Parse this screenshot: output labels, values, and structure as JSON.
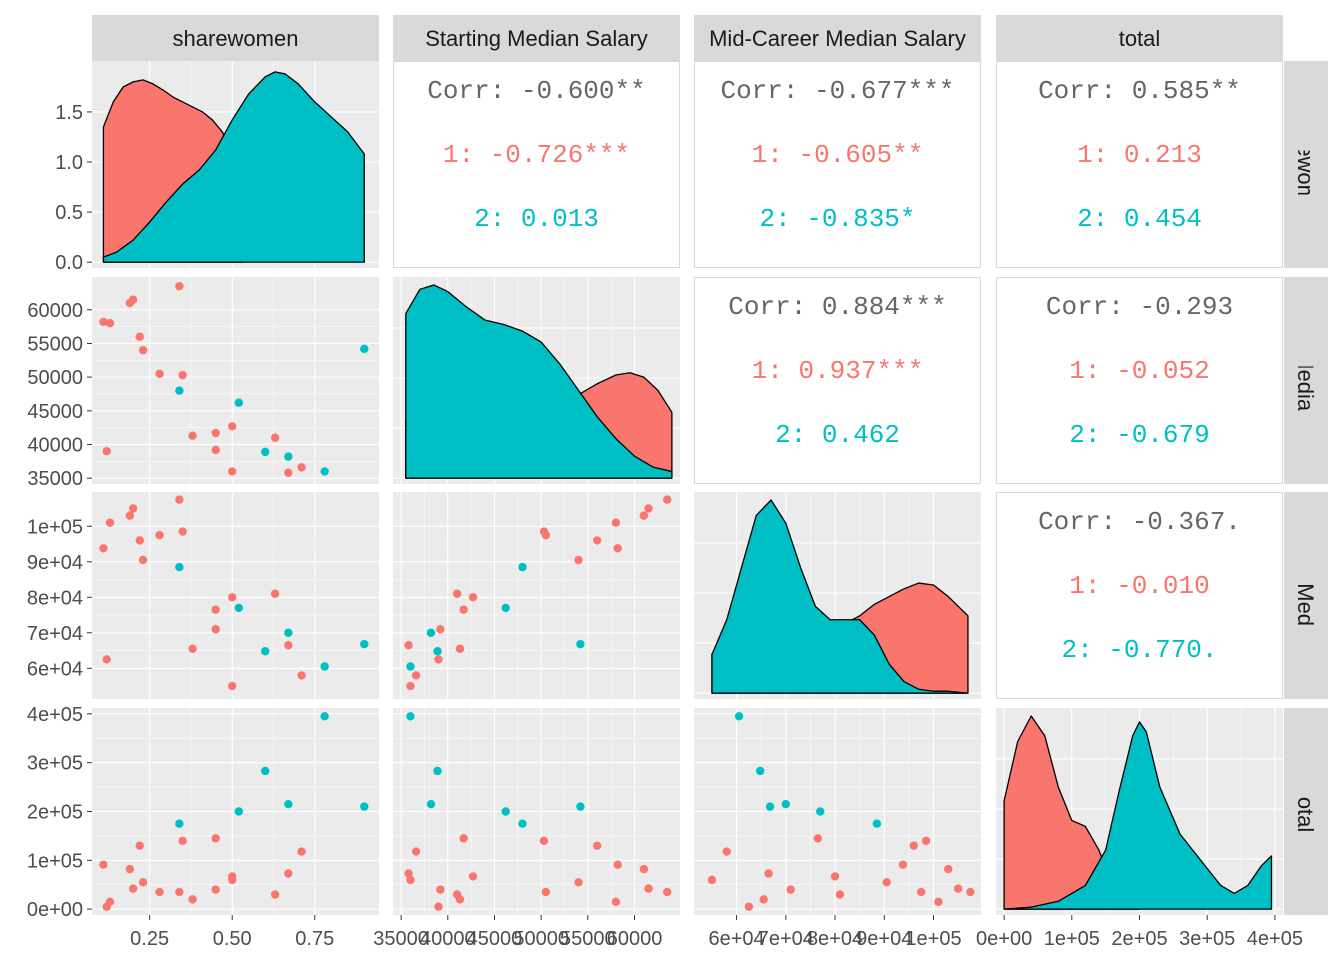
{
  "chart_data": {
    "type": "scatter-matrix",
    "variables": [
      "sharewomen",
      "Starting Median Salary",
      "Mid-Career Median Salary",
      "total"
    ],
    "panel_titles": [
      "sharewomen",
      "Starting Median Salary",
      "Mid-Career Median Salary",
      "total"
    ],
    "strip_labels_right": [
      "sharewomen",
      "Starting Median Salary",
      "Mid-Career Median Salary",
      "total"
    ],
    "groups": [
      {
        "id": "1",
        "color": "#F8766D"
      },
      {
        "id": "2",
        "color": "#00BFC4"
      }
    ],
    "axis_ticks": {
      "sharewomen": {
        "range": [
          0.1,
          0.92
        ],
        "ticks": [
          0.25,
          0.5,
          0.75
        ],
        "labels": [
          "0.25",
          "0.50",
          "0.75"
        ]
      },
      "Starting Median Salary": {
        "range": [
          35000,
          64000
        ],
        "ticks": [
          35000,
          40000,
          45000,
          50000,
          55000,
          60000
        ],
        "labels": [
          "35000",
          "40000",
          "45000",
          "50000",
          "55000",
          "60000"
        ]
      },
      "Mid-Career Median Salary": {
        "range": [
          53000,
          108000
        ],
        "ticks": [
          60000,
          70000,
          80000,
          90000,
          100000
        ],
        "labels": [
          "6e+04",
          "7e+04",
          "8e+04",
          "9e+04",
          "1e+05"
        ]
      },
      "total": {
        "range": [
          0,
          400000
        ],
        "ticks": [
          0,
          100000,
          200000,
          300000,
          400000
        ],
        "labels": [
          "0e+00",
          "1e+05",
          "2e+05",
          "3e+05",
          "4e+05"
        ]
      }
    },
    "density_ticks": {
      "range": [
        0,
        1.95
      ],
      "ticks": [
        0,
        0.5,
        1.0,
        1.5
      ],
      "labels": [
        "0.0",
        "0.5",
        "1.0",
        "1.5"
      ]
    },
    "points": [
      {
        "group": "1",
        "sharewomen": 0.11,
        "Starting Median Salary": 58200,
        "Mid-Career Median Salary": 93800,
        "total": 91000
      },
      {
        "group": "1",
        "sharewomen": 0.13,
        "Starting Median Salary": 58000,
        "Mid-Career Median Salary": 101000,
        "total": 15000
      },
      {
        "group": "1",
        "sharewomen": 0.12,
        "Starting Median Salary": 39000,
        "Mid-Career Median Salary": 62500,
        "total": 5000
      },
      {
        "group": "1",
        "sharewomen": 0.19,
        "Starting Median Salary": 61000,
        "Mid-Career Median Salary": 103000,
        "total": 82000
      },
      {
        "group": "1",
        "sharewomen": 0.2,
        "Starting Median Salary": 61500,
        "Mid-Career Median Salary": 105000,
        "total": 42000
      },
      {
        "group": "1",
        "sharewomen": 0.22,
        "Starting Median Salary": 56000,
        "Mid-Career Median Salary": 96000,
        "total": 130000
      },
      {
        "group": "1",
        "sharewomen": 0.23,
        "Starting Median Salary": 54000,
        "Mid-Career Median Salary": 90500,
        "total": 55000
      },
      {
        "group": "1",
        "sharewomen": 0.28,
        "Starting Median Salary": 50500,
        "Mid-Career Median Salary": 97500,
        "total": 35000
      },
      {
        "group": "1",
        "sharewomen": 0.34,
        "Starting Median Salary": 63500,
        "Mid-Career Median Salary": 107500,
        "total": 35000
      },
      {
        "group": "1",
        "sharewomen": 0.35,
        "Starting Median Salary": 50300,
        "Mid-Career Median Salary": 98500,
        "total": 140000
      },
      {
        "group": "1",
        "sharewomen": 0.38,
        "Starting Median Salary": 41300,
        "Mid-Career Median Salary": 65500,
        "total": 20000
      },
      {
        "group": "1",
        "sharewomen": 0.45,
        "Starting Median Salary": 41700,
        "Mid-Career Median Salary": 76500,
        "total": 145000
      },
      {
        "group": "1",
        "sharewomen": 0.45,
        "Starting Median Salary": 39200,
        "Mid-Career Median Salary": 71000,
        "total": 40000
      },
      {
        "group": "1",
        "sharewomen": 0.5,
        "Starting Median Salary": 42700,
        "Mid-Career Median Salary": 80000,
        "total": 67000
      },
      {
        "group": "1",
        "sharewomen": 0.5,
        "Starting Median Salary": 36000,
        "Mid-Career Median Salary": 55000,
        "total": 60000
      },
      {
        "group": "1",
        "sharewomen": 0.63,
        "Starting Median Salary": 41000,
        "Mid-Career Median Salary": 81000,
        "total": 30000
      },
      {
        "group": "1",
        "sharewomen": 0.67,
        "Starting Median Salary": 35800,
        "Mid-Career Median Salary": 66500,
        "total": 73000
      },
      {
        "group": "1",
        "sharewomen": 0.71,
        "Starting Median Salary": 36600,
        "Mid-Career Median Salary": 58000,
        "total": 118000
      },
      {
        "group": "2",
        "sharewomen": 0.34,
        "Starting Median Salary": 48000,
        "Mid-Career Median Salary": 88500,
        "total": 175000
      },
      {
        "group": "2",
        "sharewomen": 0.52,
        "Starting Median Salary": 46200,
        "Mid-Career Median Salary": 77000,
        "total": 200000
      },
      {
        "group": "2",
        "sharewomen": 0.6,
        "Starting Median Salary": 38900,
        "Mid-Career Median Salary": 64800,
        "total": 283000
      },
      {
        "group": "2",
        "sharewomen": 0.67,
        "Starting Median Salary": 38200,
        "Mid-Career Median Salary": 70000,
        "total": 215000
      },
      {
        "group": "2",
        "sharewomen": 0.78,
        "Starting Median Salary": 36000,
        "Mid-Career Median Salary": 60500,
        "total": 395000
      },
      {
        "group": "2",
        "sharewomen": 0.9,
        "Starting Median Salary": 54200,
        "Mid-Career Median Salary": 66800,
        "total": 210000
      }
    ],
    "densities": [
      {
        "variable": "sharewomen",
        "groups": [
          {
            "group": "1",
            "x": [
              0.11,
              0.14,
              0.17,
              0.2,
              0.23,
              0.26,
              0.29,
              0.32,
              0.35,
              0.38,
              0.41,
              0.44,
              0.47,
              0.5,
              0.53
            ],
            "y": [
              1.35,
              1.6,
              1.75,
              1.8,
              1.82,
              1.78,
              1.72,
              1.65,
              1.6,
              1.55,
              1.5,
              1.42,
              1.3,
              1.12,
              0.9
            ]
          },
          {
            "group": "2",
            "x": [
              0.11,
              0.15,
              0.2,
              0.25,
              0.3,
              0.35,
              0.4,
              0.45,
              0.5,
              0.55,
              0.6,
              0.63,
              0.66,
              0.7,
              0.75,
              0.8,
              0.85,
              0.9
            ],
            "y": [
              0.05,
              0.1,
              0.22,
              0.4,
              0.6,
              0.78,
              0.92,
              1.12,
              1.42,
              1.68,
              1.85,
              1.9,
              1.88,
              1.78,
              1.6,
              1.45,
              1.3,
              1.08
            ]
          }
        ]
      },
      {
        "variable": "Starting Median Salary",
        "groups": [
          {
            "group": "1",
            "x": [
              35500,
              38000,
              41000,
              44000,
              47000,
              50000,
              52000,
              54000,
              56000,
              58000,
              59500,
              61000,
              62500,
              64000
            ],
            "y": [
              0.26,
              0.3,
              0.32,
              0.33,
              0.33,
              0.33,
              0.34,
              0.38,
              0.43,
              0.47,
              0.48,
              0.46,
              0.4,
              0.3
            ]
          },
          {
            "group": "2",
            "x": [
              35500,
              37000,
              38500,
              40000,
              42000,
              44000,
              46000,
              48000,
              50000,
              52000,
              54000,
              56000,
              58000,
              60000,
              62000,
              64000
            ],
            "y": [
              0.75,
              0.86,
              0.88,
              0.85,
              0.78,
              0.72,
              0.7,
              0.67,
              0.62,
              0.52,
              0.4,
              0.28,
              0.18,
              0.1,
              0.05,
              0.03
            ]
          }
        ]
      },
      {
        "variable": "Mid-Career Median Salary",
        "groups": [
          {
            "group": "1",
            "x": [
              55000,
              58000,
              61000,
              64000,
              67000,
              70000,
              73000,
              76000,
              79000,
              82000,
              85000,
              88000,
              91000,
              94000,
              97000,
              100000,
              103000,
              107000
            ],
            "y": [
              0.2,
              0.35,
              0.58,
              0.82,
              0.9,
              0.8,
              0.58,
              0.42,
              0.36,
              0.36,
              0.4,
              0.46,
              0.5,
              0.54,
              0.57,
              0.56,
              0.5,
              0.4
            ]
          },
          {
            "group": "2",
            "x": [
              55000,
              58000,
              61000,
              64000,
              67000,
              70000,
              73000,
              76000,
              79000,
              82000,
              85000,
              88000,
              91000,
              94000,
              97000,
              100000,
              103000,
              107000
            ],
            "y": [
              0.2,
              0.38,
              0.65,
              0.92,
              1.0,
              0.88,
              0.65,
              0.45,
              0.38,
              0.38,
              0.38,
              0.3,
              0.15,
              0.06,
              0.02,
              0.01,
              0.01,
              0.0
            ]
          }
        ]
      },
      {
        "variable": "total",
        "groups": [
          {
            "group": "1",
            "x": [
              0,
              20000,
              40000,
              60000,
              80000,
              100000,
              120000,
              140000,
              160000,
              180000,
              200000
            ],
            "y": [
              0.55,
              0.85,
              0.98,
              0.88,
              0.62,
              0.45,
              0.42,
              0.3,
              0.12,
              0.03,
              0.0
            ]
          },
          {
            "group": "2",
            "x": [
              0,
              40000,
              80000,
              120000,
              150000,
              170000,
              190000,
              200000,
              210000,
              230000,
              260000,
              290000,
              320000,
              340000,
              360000,
              380000,
              395000
            ],
            "y": [
              0.0,
              0.01,
              0.04,
              0.12,
              0.3,
              0.6,
              0.88,
              0.95,
              0.9,
              0.62,
              0.38,
              0.25,
              0.12,
              0.08,
              0.12,
              0.22,
              0.27
            ]
          }
        ]
      }
    ],
    "correlations": [
      {
        "row": 0,
        "col": 1,
        "overall": "Corr: -0.600**",
        "group1": "1: -0.726***",
        "group2": "2: 0.013"
      },
      {
        "row": 0,
        "col": 2,
        "overall": "Corr: -0.677***",
        "group1": "1: -0.605**",
        "group2": "2: -0.835*"
      },
      {
        "row": 0,
        "col": 3,
        "overall": "Corr: 0.585**",
        "group1": "1: 0.213",
        "group2": "2: 0.454"
      },
      {
        "row": 1,
        "col": 2,
        "overall": "Corr: 0.884***",
        "group1": "1: 0.937***",
        "group2": "2: 0.462"
      },
      {
        "row": 1,
        "col": 3,
        "overall": "Corr: -0.293",
        "group1": "1: -0.052",
        "group2": "2: -0.679"
      },
      {
        "row": 2,
        "col": 3,
        "overall": "Corr: -0.367.",
        "group1": "1: -0.010",
        "group2": "2: -0.770."
      }
    ]
  }
}
